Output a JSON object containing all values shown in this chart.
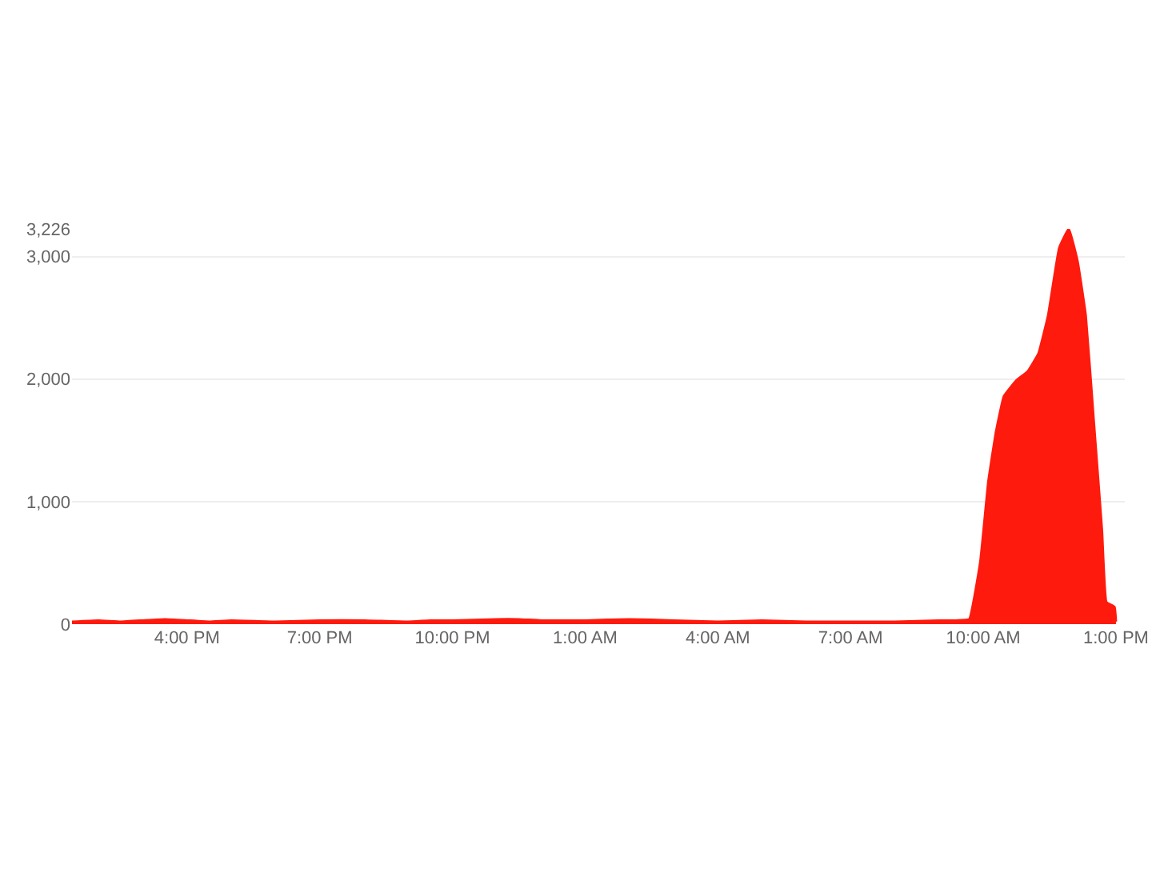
{
  "chart_data": {
    "type": "area",
    "x": [
      "--01-01T13:24",
      "--01-01T14:00",
      "--01-01T14:30",
      "--01-01T15:00",
      "--01-01T15:30",
      "--01-01T16:00",
      "--01-01T16:30",
      "--01-01T17:00",
      "--01-01T18:00",
      "--01-01T19:00",
      "--01-01T20:00",
      "--01-01T21:00",
      "--01-01T21:30",
      "--01-01T22:00",
      "--01-01T23:00",
      "--01-01T23:30",
      "--01-02T00:00",
      "--01-02T01:00",
      "--01-02T02:00",
      "--01-02T03:00",
      "--01-02T04:00",
      "--01-02T05:00",
      "--01-02T06:00",
      "--01-02T07:00",
      "--01-02T08:00",
      "--01-02T09:00",
      "--01-02T09:24",
      "--01-02T09:41",
      "--01-02T09:56",
      "--01-02T10:07",
      "--01-02T10:17",
      "--01-02T10:28",
      "--01-02T10:45",
      "--01-02T11:00",
      "--01-02T11:15",
      "--01-02T11:28",
      "--01-02T11:43",
      "--01-02T11:56",
      "--01-02T12:08",
      "--01-02T12:19",
      "--01-02T12:30",
      "--01-02T12:41",
      "--01-02T12:47",
      "--01-02T12:58",
      "--01-02T13:00"
    ],
    "series": [
      {
        "color": "#ff1a0e",
        "values": [
          20,
          30,
          20,
          30,
          40,
          30,
          20,
          30,
          20,
          30,
          30,
          20,
          30,
          30,
          40,
          40,
          30,
          30,
          40,
          30,
          20,
          30,
          20,
          20,
          20,
          30,
          30,
          40,
          510,
          1170,
          1560,
          1860,
          1990,
          2060,
          2210,
          2520,
          3070,
          3226,
          2960,
          2520,
          1650,
          770,
          180,
          140,
          20
        ]
      }
    ],
    "xlim": [
      "--01-01T13:24",
      "--01-02T13:12"
    ],
    "xticks": [
      {
        "value": "--01-01T16:00",
        "label": "4:00 PM"
      },
      {
        "value": "--01-01T19:00",
        "label": "7:00 PM"
      },
      {
        "value": "--01-01T22:00",
        "label": "10:00 PM"
      },
      {
        "value": "--01-02T01:00",
        "label": "1:00 AM"
      },
      {
        "value": "--01-02T04:00",
        "label": "4:00 AM"
      },
      {
        "value": "--01-02T07:00",
        "label": "7:00 AM"
      },
      {
        "value": "--01-02T10:00",
        "label": "10:00 AM"
      },
      {
        "value": "--01-02T13:00",
        "label": "1:00 PM"
      }
    ],
    "ylim": [
      0,
      3226
    ],
    "yticks": [
      {
        "value": 0,
        "label": "0"
      },
      {
        "value": 1000,
        "label": "1,000"
      },
      {
        "value": 2000,
        "label": "2,000"
      },
      {
        "value": 3000,
        "label": "3,000"
      },
      {
        "value": 3226,
        "label": "3,226"
      }
    ],
    "grid": "y"
  }
}
